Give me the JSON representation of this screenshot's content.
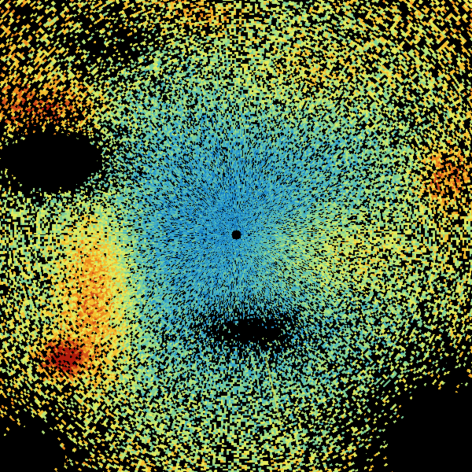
{
  "image": {
    "kind": "radar-reflectivity-sweep",
    "background": "#000000",
    "palette": [
      "#0b4f96",
      "#1178c0",
      "#2a9ad0",
      "#4cb8c0",
      "#7ccf9a",
      "#b5e47a",
      "#e6ec5a",
      "#f5c030",
      "#ec8a1e",
      "#d2501a",
      "#b01a0c"
    ]
  }
}
